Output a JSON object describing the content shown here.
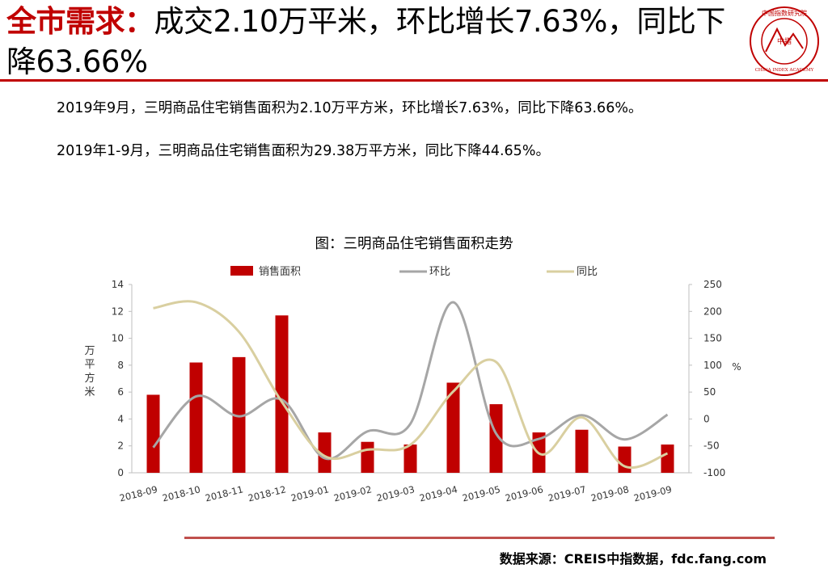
{
  "header": {
    "title_highlight": "全市需求：",
    "title_rest": "成交2.10万平米，环比增长7.63%，同比下降63.66%",
    "logo_text_top": "中国指数研究院",
    "logo_text_center": "中指",
    "logo_text_bottom": "CHINA INDEX ACADEMY"
  },
  "body": {
    "para1": "2019年9月，三明商品住宅销售面积为2.10万平方米，环比增长7.63%，同比下降63.66%。",
    "para2": "2019年1-9月，三明商品住宅销售面积为29.38万平方米，同比下降44.65%。"
  },
  "colors": {
    "accent": "#c00000",
    "bar": "#c00000",
    "mom": "#a6a6a6",
    "yoy": "#d9cfa0",
    "footer_rule": "#c0504d"
  },
  "chart_data": {
    "type": "bar",
    "title": "图：三明商品住宅销售面积走势",
    "categories": [
      "2018-09",
      "2018-10",
      "2018-11",
      "2018-12",
      "2019-01",
      "2019-02",
      "2019-03",
      "2019-04",
      "2019-05",
      "2019-06",
      "2019-07",
      "2019-08",
      "2019-09"
    ],
    "ylabel": "万平方米",
    "y2label": "%",
    "ylim": [
      0,
      14
    ],
    "y_ticks": [
      0,
      2,
      4,
      6,
      8,
      10,
      12,
      14
    ],
    "y2lim": [
      -100,
      250
    ],
    "y2_ticks": [
      -100,
      -50,
      0,
      50,
      100,
      150,
      200,
      250
    ],
    "legend_position": "top",
    "series": [
      {
        "name": "销售面积",
        "type": "bar",
        "axis": "left",
        "values": [
          5.8,
          8.2,
          8.6,
          11.7,
          3.0,
          2.3,
          2.1,
          6.7,
          5.1,
          3.0,
          3.2,
          1.95,
          2.1
        ]
      },
      {
        "name": "环比",
        "type": "line",
        "axis": "right",
        "values": [
          -53,
          42,
          5,
          36,
          -73,
          -23,
          -9,
          217,
          -27,
          -37,
          7,
          -38,
          8
        ]
      },
      {
        "name": "同比",
        "type": "line",
        "axis": "right",
        "values": [
          206,
          217,
          162,
          32,
          -69,
          -57,
          -48,
          51,
          106,
          -64,
          3,
          -88,
          -64
        ]
      }
    ]
  },
  "footer": {
    "source": "数据来源：CREIS中指数据，fdc.fang.com"
  }
}
